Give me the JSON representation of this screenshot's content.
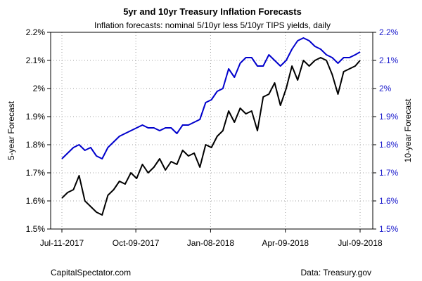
{
  "colors": {
    "series_5yr": "#000000",
    "series_10yr": "#0000cc",
    "grid": "#a0a0a0",
    "axis": "#000000",
    "right_axis_text": "#1a1acc"
  },
  "footer": {
    "left": "CapitalSpectator.com",
    "right": "Data: Treasury.gov"
  },
  "chart_data": {
    "type": "line",
    "title": "5yr and 10yr Treasury Inflation Forecasts",
    "subtitle": "Inflation forecasts: nominal 5/10yr less 5/10yr TIPS yields, daily",
    "ylabel": "5-year Forecast",
    "ylabel_right": "10-year Forecast",
    "xlabel": "",
    "grid": true,
    "ylim": [
      1.5,
      2.2
    ],
    "ylim_right": [
      1.5,
      2.2
    ],
    "x_tick_labels": [
      "Jul-11-2017",
      "Oct-09-2017",
      "Jan-08-2018",
      "Apr-09-2018",
      "Jul-09-2018"
    ],
    "y_tick_labels": [
      "1.5%",
      "1.6%",
      "1.7%",
      "1.8%",
      "1.9%",
      "2%",
      "2.1%",
      "2.2%"
    ],
    "y_tick_values": [
      1.5,
      1.6,
      1.7,
      1.8,
      1.9,
      2.0,
      2.1,
      2.2
    ],
    "series": [
      {
        "name": "5-year Forecast",
        "axis": "left",
        "x": [
          "2017-07-11",
          "2017-07-18",
          "2017-07-25",
          "2017-08-01",
          "2017-08-08",
          "2017-08-15",
          "2017-08-22",
          "2017-08-29",
          "2017-09-05",
          "2017-09-12",
          "2017-09-19",
          "2017-09-26",
          "2017-10-03",
          "2017-10-10",
          "2017-10-17",
          "2017-10-24",
          "2017-10-31",
          "2017-11-07",
          "2017-11-14",
          "2017-11-21",
          "2017-11-28",
          "2017-12-05",
          "2017-12-12",
          "2017-12-19",
          "2017-12-26",
          "2018-01-02",
          "2018-01-09",
          "2018-01-16",
          "2018-01-23",
          "2018-01-30",
          "2018-02-06",
          "2018-02-13",
          "2018-02-20",
          "2018-02-27",
          "2018-03-06",
          "2018-03-13",
          "2018-03-20",
          "2018-03-27",
          "2018-04-03",
          "2018-04-10",
          "2018-04-17",
          "2018-04-24",
          "2018-05-01",
          "2018-05-08",
          "2018-05-15",
          "2018-05-22",
          "2018-05-29",
          "2018-06-05",
          "2018-06-12",
          "2018-06-19",
          "2018-06-26",
          "2018-07-03",
          "2018-07-09"
        ],
        "values": [
          1.61,
          1.63,
          1.64,
          1.69,
          1.6,
          1.58,
          1.56,
          1.55,
          1.62,
          1.64,
          1.67,
          1.66,
          1.7,
          1.68,
          1.73,
          1.7,
          1.72,
          1.75,
          1.71,
          1.74,
          1.73,
          1.78,
          1.76,
          1.77,
          1.72,
          1.8,
          1.79,
          1.83,
          1.85,
          1.92,
          1.88,
          1.93,
          1.91,
          1.92,
          1.85,
          1.97,
          1.98,
          2.02,
          1.94,
          2.0,
          2.08,
          2.03,
          2.1,
          2.08,
          2.1,
          2.11,
          2.1,
          2.05,
          1.98,
          2.06,
          2.07,
          2.08,
          2.1
        ]
      },
      {
        "name": "10-year Forecast",
        "axis": "right",
        "x": [
          "2017-07-11",
          "2017-07-18",
          "2017-07-25",
          "2017-08-01",
          "2017-08-08",
          "2017-08-15",
          "2017-08-22",
          "2017-08-29",
          "2017-09-05",
          "2017-09-12",
          "2017-09-19",
          "2017-09-26",
          "2017-10-03",
          "2017-10-10",
          "2017-10-17",
          "2017-10-24",
          "2017-10-31",
          "2017-11-07",
          "2017-11-14",
          "2017-11-21",
          "2017-11-28",
          "2017-12-05",
          "2017-12-12",
          "2017-12-19",
          "2017-12-26",
          "2018-01-02",
          "2018-01-09",
          "2018-01-16",
          "2018-01-23",
          "2018-01-30",
          "2018-02-06",
          "2018-02-13",
          "2018-02-20",
          "2018-02-27",
          "2018-03-06",
          "2018-03-13",
          "2018-03-20",
          "2018-03-27",
          "2018-04-03",
          "2018-04-10",
          "2018-04-17",
          "2018-04-24",
          "2018-05-01",
          "2018-05-08",
          "2018-05-15",
          "2018-05-22",
          "2018-05-29",
          "2018-06-05",
          "2018-06-12",
          "2018-06-19",
          "2018-06-26",
          "2018-07-03",
          "2018-07-09"
        ],
        "values": [
          1.75,
          1.77,
          1.79,
          1.8,
          1.78,
          1.79,
          1.76,
          1.75,
          1.79,
          1.81,
          1.83,
          1.84,
          1.85,
          1.86,
          1.87,
          1.86,
          1.86,
          1.85,
          1.86,
          1.86,
          1.84,
          1.87,
          1.87,
          1.88,
          1.89,
          1.95,
          1.96,
          1.99,
          2.0,
          2.07,
          2.04,
          2.09,
          2.11,
          2.11,
          2.08,
          2.08,
          2.12,
          2.1,
          2.08,
          2.1,
          2.14,
          2.17,
          2.18,
          2.17,
          2.15,
          2.14,
          2.12,
          2.11,
          2.09,
          2.11,
          2.11,
          2.12,
          2.13
        ]
      }
    ]
  }
}
